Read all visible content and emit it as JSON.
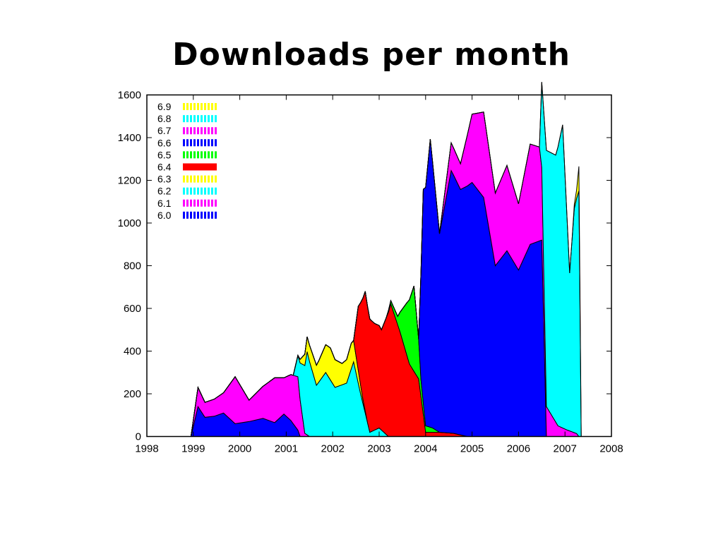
{
  "slide": {
    "title": "Downloads per month"
  },
  "chart_data": {
    "type": "area",
    "stacked": true,
    "title": "",
    "xlabel": "",
    "ylabel": "",
    "xlim": [
      1998,
      2008
    ],
    "ylim": [
      0,
      1600
    ],
    "x_ticks": [
      "1998",
      "1999",
      "2000",
      "2001",
      "2002",
      "2003",
      "2004",
      "2005",
      "2006",
      "2007",
      "2008"
    ],
    "y_ticks": [
      "0",
      "200",
      "400",
      "600",
      "800",
      "1000",
      "1200",
      "1400",
      "1600"
    ],
    "grid": false,
    "legend_position": "top-left",
    "legend": [
      {
        "name": "6.9",
        "color": "#ffff00",
        "pattern": "dashed"
      },
      {
        "name": "6.8",
        "color": "#00ffff",
        "pattern": "dashed"
      },
      {
        "name": "6.7",
        "color": "#ff00ff",
        "pattern": "dashed"
      },
      {
        "name": "6.6",
        "color": "#0000ff",
        "pattern": "dashed"
      },
      {
        "name": "6.5",
        "color": "#00ff00",
        "pattern": "dashed"
      },
      {
        "name": "6.4",
        "color": "#ff0000",
        "pattern": "solid"
      },
      {
        "name": "6.3",
        "color": "#ffff00",
        "pattern": "dashed"
      },
      {
        "name": "6.2",
        "color": "#00ffff",
        "pattern": "dashed"
      },
      {
        "name": "6.1",
        "color": "#ff00ff",
        "pattern": "dashed"
      },
      {
        "name": "6.0",
        "color": "#0000ff",
        "pattern": "dashed"
      }
    ],
    "series": [
      {
        "name": "6.0",
        "color": "#0000ff",
        "points": [
          [
            1998.95,
            100
          ],
          [
            1999.1,
            140
          ],
          [
            1999.25,
            90
          ],
          [
            1999.45,
            95
          ],
          [
            1999.65,
            110
          ],
          [
            1999.9,
            60
          ],
          [
            2000.2,
            70
          ],
          [
            2000.5,
            85
          ],
          [
            2000.75,
            65
          ],
          [
            2000.95,
            105
          ],
          [
            2001.1,
            75
          ],
          [
            2001.25,
            30
          ],
          [
            2001.3,
            0
          ]
        ]
      },
      {
        "name": "6.1",
        "color": "#ff00ff",
        "points": [
          [
            1998.95,
            30
          ],
          [
            1999.1,
            90
          ],
          [
            1999.25,
            70
          ],
          [
            1999.45,
            80
          ],
          [
            1999.65,
            95
          ],
          [
            1999.9,
            220
          ],
          [
            2000.2,
            100
          ],
          [
            2000.5,
            150
          ],
          [
            2000.75,
            210
          ],
          [
            2000.95,
            170
          ],
          [
            2001.1,
            215
          ],
          [
            2001.25,
            250
          ],
          [
            2001.4,
            15
          ],
          [
            2001.5,
            0
          ]
        ]
      },
      {
        "name": "6.2",
        "color": "#00ffff",
        "points": [
          [
            2001.15,
            0
          ],
          [
            2001.25,
            100
          ],
          [
            2001.45,
            390
          ],
          [
            2001.65,
            240
          ],
          [
            2001.85,
            300
          ],
          [
            2002.05,
            230
          ],
          [
            2002.3,
            250
          ],
          [
            2002.45,
            350
          ],
          [
            2002.6,
            200
          ],
          [
            2002.8,
            20
          ],
          [
            2003.0,
            40
          ],
          [
            2003.2,
            0
          ]
        ]
      },
      {
        "name": "6.3",
        "color": "#ffff00",
        "points": [
          [
            2001.25,
            0
          ],
          [
            2001.45,
            70
          ],
          [
            2001.7,
            100
          ],
          [
            2001.95,
            150
          ],
          [
            2002.2,
            100
          ],
          [
            2002.4,
            120
          ],
          [
            2002.55,
            60
          ],
          [
            2002.65,
            20
          ],
          [
            2002.75,
            0
          ]
        ]
      },
      {
        "name": "6.4",
        "color": "#ff0000",
        "points": [
          [
            2002.45,
            0
          ],
          [
            2002.55,
            300
          ],
          [
            2002.7,
            560
          ],
          [
            2002.9,
            500
          ],
          [
            2003.05,
            470
          ],
          [
            2003.25,
            620
          ],
          [
            2003.45,
            490
          ],
          [
            2003.65,
            340
          ],
          [
            2003.85,
            270
          ],
          [
            2004.0,
            20
          ],
          [
            2004.3,
            20
          ],
          [
            2004.6,
            15
          ],
          [
            2004.9,
            0
          ]
        ]
      },
      {
        "name": "6.5",
        "color": "#00ff00",
        "points": [
          [
            2003.15,
            0
          ],
          [
            2003.4,
            40
          ],
          [
            2003.6,
            250
          ],
          [
            2003.75,
            400
          ],
          [
            2003.9,
            80
          ],
          [
            2004.0,
            30
          ],
          [
            2004.15,
            20
          ],
          [
            2004.3,
            0
          ]
        ]
      },
      {
        "name": "6.6",
        "color": "#0000ff",
        "points": [
          [
            2003.85,
            0
          ],
          [
            2003.95,
            1000
          ],
          [
            2004.1,
            1350
          ],
          [
            2004.3,
            930
          ],
          [
            2004.55,
            1230
          ],
          [
            2004.75,
            1150
          ],
          [
            2005.0,
            1190
          ],
          [
            2005.25,
            1120
          ],
          [
            2005.5,
            800
          ],
          [
            2005.75,
            870
          ],
          [
            2006.0,
            780
          ],
          [
            2006.25,
            900
          ],
          [
            2006.5,
            920
          ],
          [
            2006.6,
            0
          ]
        ]
      },
      {
        "name": "6.7",
        "color": "#ff00ff",
        "points": [
          [
            2004.3,
            0
          ],
          [
            2004.55,
            130
          ],
          [
            2004.75,
            120
          ],
          [
            2005.0,
            320
          ],
          [
            2005.25,
            400
          ],
          [
            2005.5,
            340
          ],
          [
            2005.75,
            400
          ],
          [
            2006.0,
            310
          ],
          [
            2006.25,
            470
          ],
          [
            2006.45,
            440
          ],
          [
            2006.6,
            140
          ],
          [
            2006.85,
            50
          ],
          [
            2007.05,
            30
          ],
          [
            2007.3,
            10
          ]
        ]
      },
      {
        "name": "6.8",
        "color": "#00ffff",
        "points": [
          [
            2006.45,
            0
          ],
          [
            2006.6,
            1200
          ],
          [
            2006.8,
            1250
          ],
          [
            2006.95,
            1420
          ],
          [
            2007.1,
            740
          ],
          [
            2007.2,
            1050
          ],
          [
            2007.3,
            1150
          ],
          [
            2007.35,
            750
          ]
        ]
      },
      {
        "name": "6.9",
        "color": "#ffff00",
        "points": [
          [
            2007.15,
            0
          ],
          [
            2007.25,
            40
          ],
          [
            2007.35,
            190
          ]
        ]
      }
    ]
  }
}
